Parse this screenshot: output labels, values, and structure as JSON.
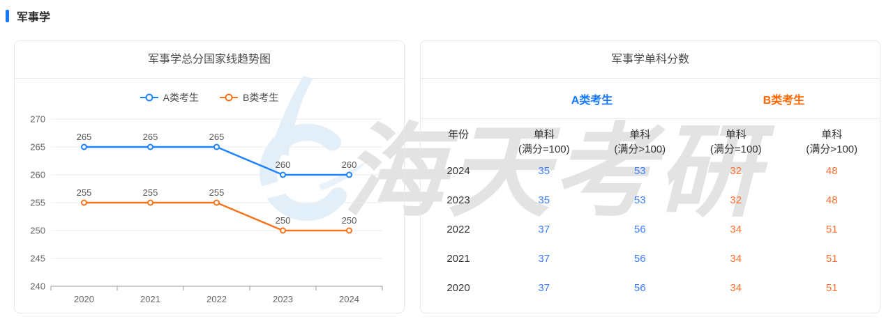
{
  "page": {
    "title": "军事学"
  },
  "colors": {
    "accent_blue": "#1677ff",
    "chart_blue": "#1e82ff",
    "chart_orange": "#f7741f",
    "value_blue": "#3d7eff",
    "value_orange": "#ff7033"
  },
  "watermark": {
    "text": "海天考研",
    "logo": "haitian-logo"
  },
  "trend_panel": {
    "title": "军事学总分国家线趋势图"
  },
  "chart_data": {
    "type": "line",
    "title": "军事学总分国家线趋势图",
    "categories": [
      "2020",
      "2021",
      "2022",
      "2023",
      "2024"
    ],
    "series": [
      {
        "name": "A类考生",
        "color": "#1e82ff",
        "values": [
          265,
          265,
          265,
          260,
          260
        ]
      },
      {
        "name": "B类考生",
        "color": "#f7741f",
        "values": [
          255,
          255,
          255,
          250,
          250
        ]
      }
    ],
    "xlabel": "",
    "ylabel": "",
    "ylim": [
      240,
      270
    ],
    "ytick_step": 5,
    "grid": true,
    "legend_position": "top",
    "point_labels_shown": true
  },
  "score_panel": {
    "title": "军事学单科分数",
    "group_headers": [
      {
        "label": "A类考生",
        "color": "#1677ff"
      },
      {
        "label": "B类考生",
        "color": "#ff6600"
      }
    ],
    "columns": [
      {
        "line1": "年份",
        "line2": ""
      },
      {
        "line1": "单科",
        "line2": "(满分=100)"
      },
      {
        "line1": "单科",
        "line2": "(满分>100)"
      },
      {
        "line1": "单科",
        "line2": "(满分=100)"
      },
      {
        "line1": "单科",
        "line2": "(满分>100)"
      }
    ],
    "rows": [
      {
        "year": "2024",
        "values": [
          "35",
          "53",
          "32",
          "48"
        ]
      },
      {
        "year": "2023",
        "values": [
          "35",
          "53",
          "32",
          "48"
        ]
      },
      {
        "year": "2022",
        "values": [
          "37",
          "56",
          "34",
          "51"
        ]
      },
      {
        "year": "2021",
        "values": [
          "37",
          "56",
          "34",
          "51"
        ]
      },
      {
        "year": "2020",
        "values": [
          "37",
          "56",
          "34",
          "51"
        ]
      }
    ]
  }
}
